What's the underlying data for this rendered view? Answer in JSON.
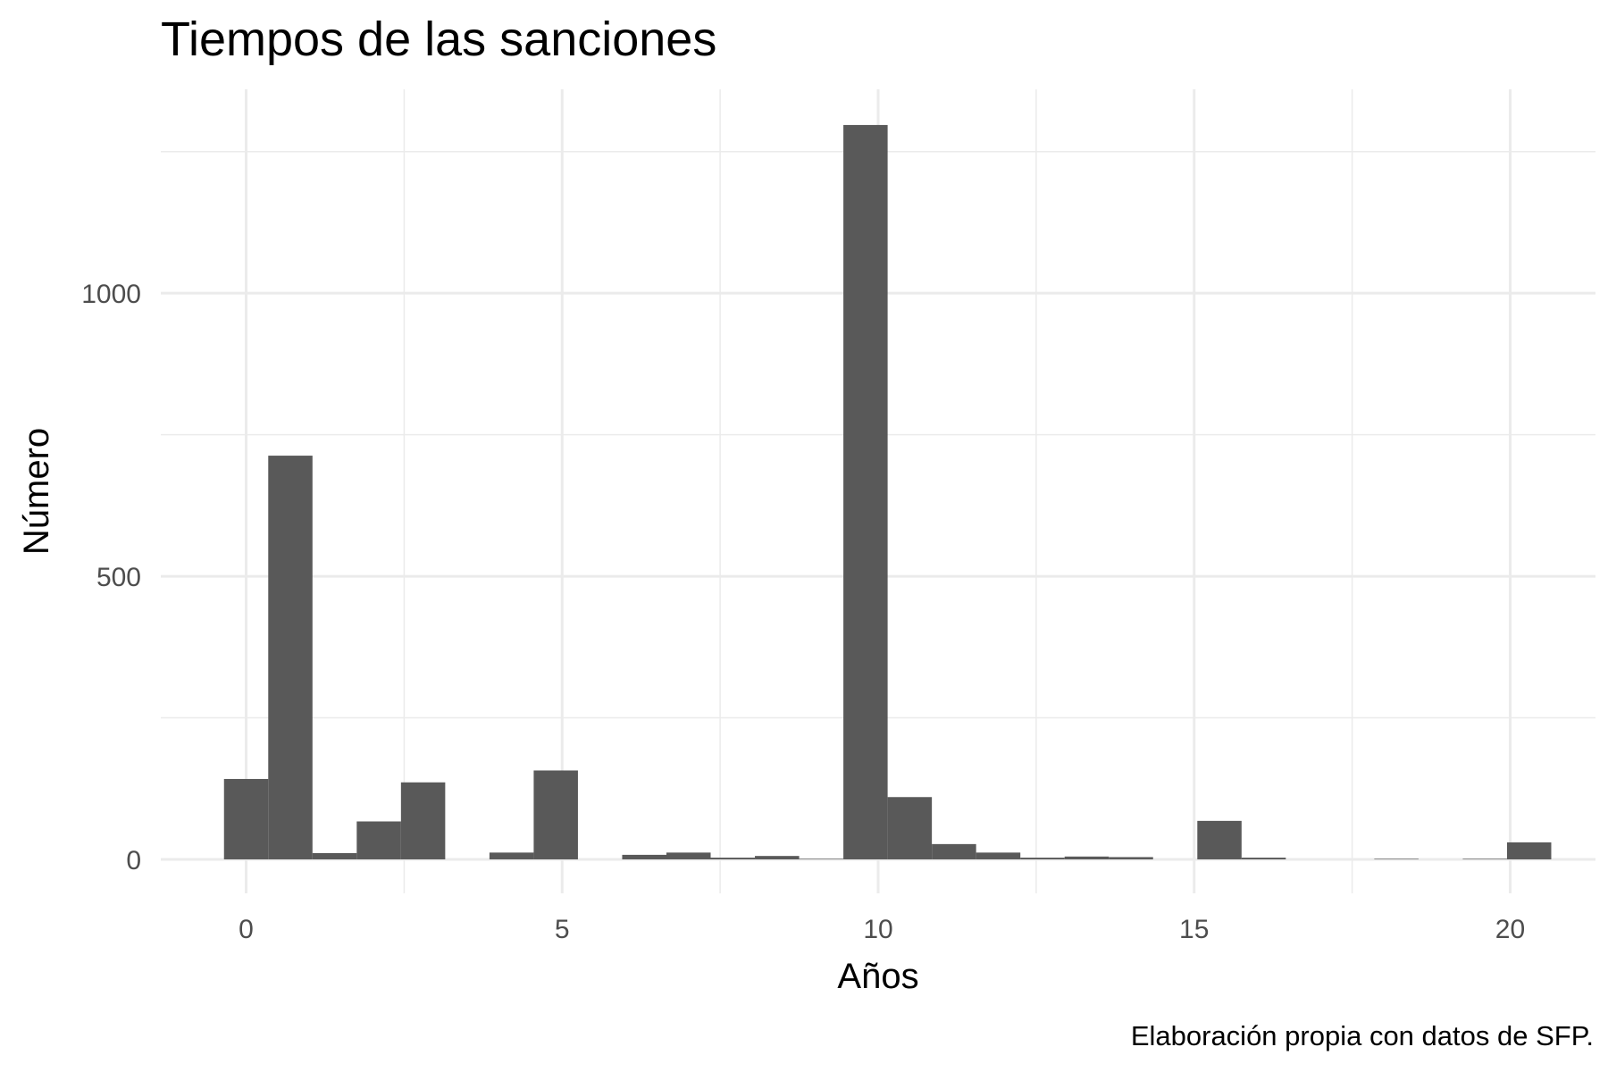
{
  "chart_data": {
    "type": "bar",
    "title": "Tiempos de las sanciones",
    "xlabel": "Años",
    "ylabel": "Número",
    "caption": "Elaboración propia con datos de SFP.",
    "bar_color": "#595959",
    "grid": true,
    "xlim": [
      -1.35,
      21.35
    ],
    "ylim": [
      -60,
      1360
    ],
    "x_ticks": [
      0,
      5,
      10,
      15,
      20
    ],
    "y_ticks": [
      0,
      500,
      1000
    ],
    "x_minor_ticks": [
      2.5,
      7.5,
      12.5,
      17.5
    ],
    "y_minor_ticks": [
      250,
      750,
      1250
    ],
    "bin_width": 0.7,
    "bins": [
      {
        "x0": -0.35,
        "x1": 0.35,
        "count": 142
      },
      {
        "x0": 0.35,
        "x1": 1.05,
        "count": 713
      },
      {
        "x0": 1.05,
        "x1": 1.75,
        "count": 11
      },
      {
        "x0": 1.75,
        "x1": 2.45,
        "count": 67
      },
      {
        "x0": 2.45,
        "x1": 3.15,
        "count": 136
      },
      {
        "x0": 3.15,
        "x1": 3.85,
        "count": 0
      },
      {
        "x0": 3.85,
        "x1": 4.55,
        "count": 12
      },
      {
        "x0": 4.55,
        "x1": 5.25,
        "count": 157
      },
      {
        "x0": 5.25,
        "x1": 5.95,
        "count": 0
      },
      {
        "x0": 5.95,
        "x1": 6.65,
        "count": 8
      },
      {
        "x0": 6.65,
        "x1": 7.35,
        "count": 12
      },
      {
        "x0": 7.35,
        "x1": 8.05,
        "count": 3
      },
      {
        "x0": 8.05,
        "x1": 8.75,
        "count": 6
      },
      {
        "x0": 8.75,
        "x1": 9.45,
        "count": 1
      },
      {
        "x0": 9.45,
        "x1": 10.15,
        "count": 1297
      },
      {
        "x0": 10.15,
        "x1": 10.85,
        "count": 110
      },
      {
        "x0": 10.85,
        "x1": 11.55,
        "count": 27
      },
      {
        "x0": 11.55,
        "x1": 12.25,
        "count": 12
      },
      {
        "x0": 12.25,
        "x1": 12.95,
        "count": 3
      },
      {
        "x0": 12.95,
        "x1": 13.65,
        "count": 5
      },
      {
        "x0": 13.65,
        "x1": 14.35,
        "count": 4
      },
      {
        "x0": 14.35,
        "x1": 15.05,
        "count": 0
      },
      {
        "x0": 15.05,
        "x1": 15.75,
        "count": 68
      },
      {
        "x0": 15.75,
        "x1": 16.45,
        "count": 3
      },
      {
        "x0": 16.45,
        "x1": 17.15,
        "count": 0
      },
      {
        "x0": 17.15,
        "x1": 17.85,
        "count": 0
      },
      {
        "x0": 17.85,
        "x1": 18.55,
        "count": 1
      },
      {
        "x0": 18.55,
        "x1": 19.25,
        "count": 0
      },
      {
        "x0": 19.25,
        "x1": 19.95,
        "count": 1
      },
      {
        "x0": 19.95,
        "x1": 20.65,
        "count": 30
      }
    ]
  }
}
